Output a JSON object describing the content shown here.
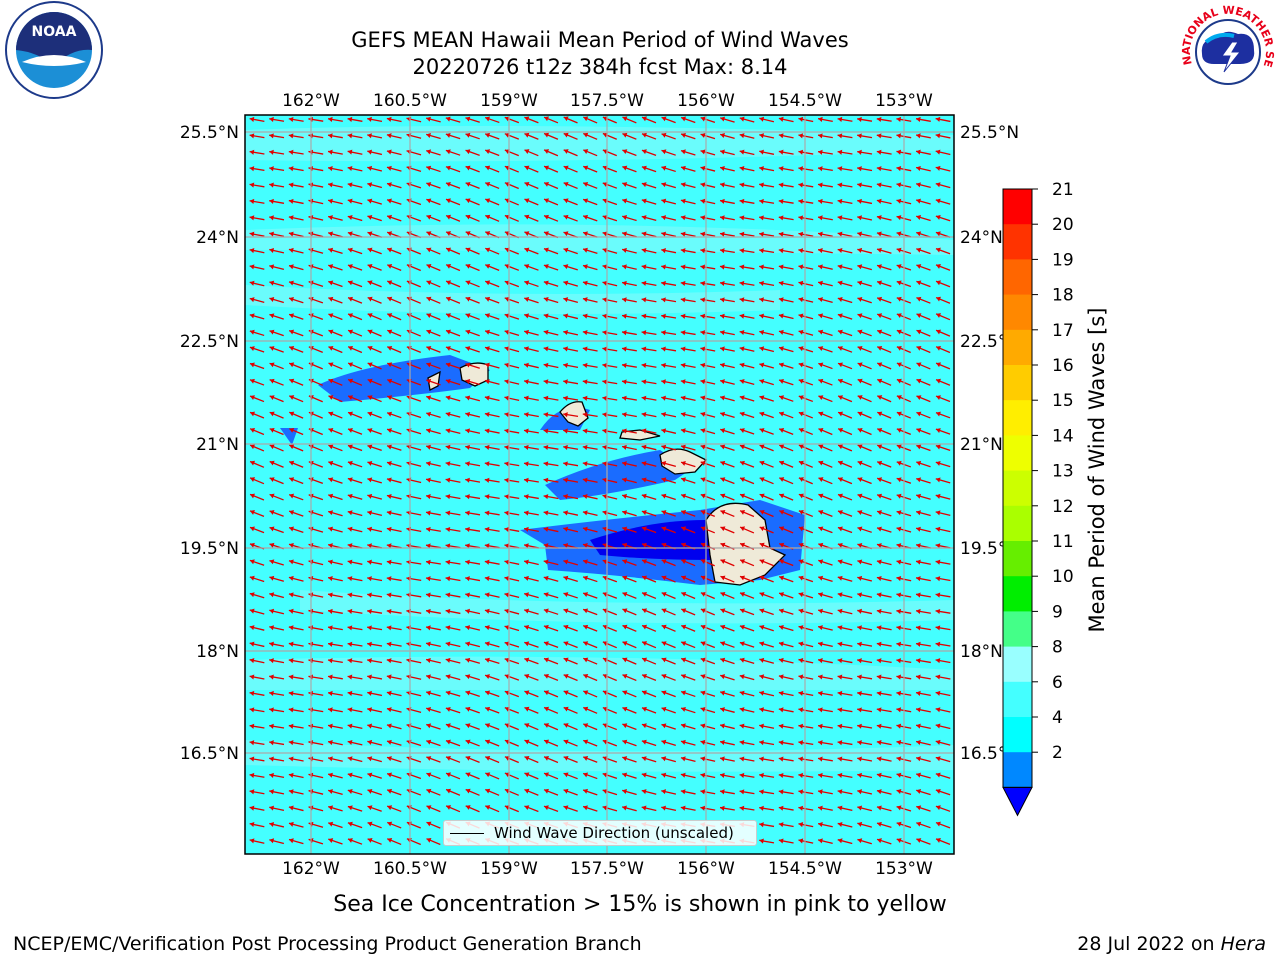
{
  "title": {
    "line1": "GEFS MEAN Hawaii Mean Period of Wind Waves",
    "line2": "20220726 t12z 384h fcst   Max: 8.14"
  },
  "logos": {
    "left": "noaa-logo",
    "right": "nws-logo",
    "right_text": "NATIONAL WEATHER SERVICE"
  },
  "map": {
    "lon_ticks": [
      "162°W",
      "160.5°W",
      "159°W",
      "157.5°W",
      "156°W",
      "154.5°W",
      "153°W"
    ],
    "lat_ticks": [
      "25.5°N",
      "24°N",
      "22.5°N",
      "21°N",
      "19.5°N",
      "18°N",
      "16.5°N"
    ],
    "background_color": "#44ffff",
    "vector_color": "#e00000",
    "land_color": "#efead8",
    "legend_label": "Wind Wave Direction (unscaled)"
  },
  "colorbar": {
    "label": "Mean Period of Wind Waves [s]",
    "ticks": [
      "21",
      "20",
      "19",
      "18",
      "17",
      "16",
      "15",
      "14",
      "13",
      "12",
      "11",
      "10",
      "9",
      "8",
      "6",
      "4",
      "2"
    ],
    "colors": [
      "#ff0000",
      "#ff3300",
      "#ff6600",
      "#ff8800",
      "#ffaa00",
      "#ffcc00",
      "#ffee00",
      "#eeff00",
      "#ccff00",
      "#aaff00",
      "#66ee00",
      "#00ee00",
      "#44ff88",
      "#99ffff",
      "#44ffff",
      "#00ffff",
      "#0088ff"
    ],
    "under_color": "#0000ff"
  },
  "footer": {
    "ice_note": "Sea Ice Concentration > 15% is shown in pink to yellow",
    "left": "NCEP/EMC/Verification Post Processing Product Generation Branch",
    "right_prefix": "28 Jul 2022 on ",
    "right_host": "Hera"
  }
}
